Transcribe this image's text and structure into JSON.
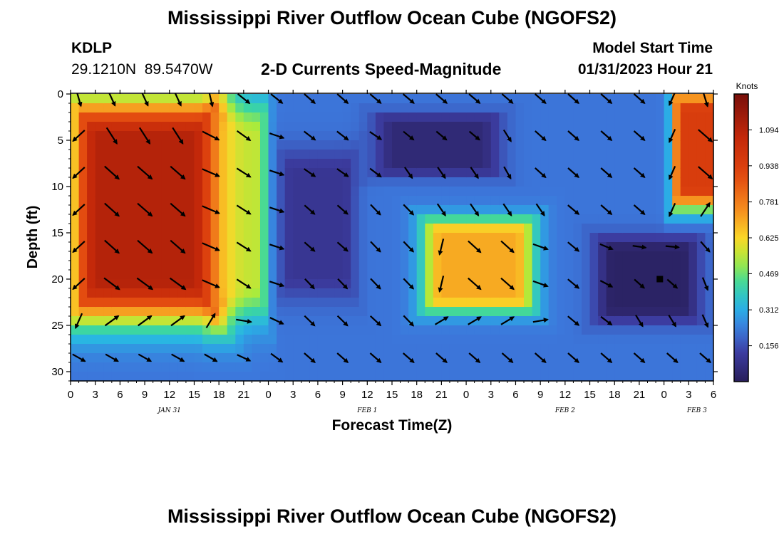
{
  "page": {
    "title": "Mississippi River Outflow Ocean Cube (NGOFS2)",
    "footer_title": "Mississippi River Outflow Ocean Cube (NGOFS2)"
  },
  "header": {
    "station_id": "KDLP",
    "station_coords": "29.1210N  89.5470W",
    "subtitle": "2-D Currents Speed-Magnitude",
    "model_start_label": "Model Start Time",
    "model_start_value": "01/31/2023 Hour 21"
  },
  "chart_data": {
    "type": "heatmap",
    "title": "2-D Currents Speed-Magnitude",
    "xlabel": "Forecast Time(Z)",
    "ylabel": "Depth (ft)",
    "xlim": [
      0,
      78
    ],
    "ylim": [
      31,
      0
    ],
    "y_ticks": [
      0,
      5,
      10,
      15,
      20,
      25,
      30
    ],
    "x_ticks": [
      "0",
      "3",
      "6",
      "9",
      "12",
      "15",
      "18",
      "21",
      "0",
      "3",
      "6",
      "9",
      "12",
      "15",
      "18",
      "21",
      "0",
      "3",
      "6",
      "9",
      "12",
      "15",
      "18",
      "21",
      "0",
      "3",
      "6"
    ],
    "date_labels": [
      {
        "text": "JAN 31",
        "hour": 12
      },
      {
        "text": "FEB 1",
        "hour": 36
      },
      {
        "text": "FEB 2",
        "hour": 60
      },
      {
        "text": "FEB 3",
        "hour": 76
      }
    ],
    "colorbar": {
      "label": "Knots",
      "ticks": [
        "0.156",
        "0.312",
        "0.469",
        "0.625",
        "0.781",
        "0.938",
        "1.094"
      ],
      "tick_values": [
        0.156,
        0.312,
        0.469,
        0.625,
        0.781,
        0.938,
        1.094
      ],
      "range": [
        0,
        1.25
      ]
    },
    "speed_features": [
      {
        "hour_range": [
          0,
          18
        ],
        "depth_range": [
          0,
          25
        ],
        "speed": 1.1
      },
      {
        "hour_range": [
          18,
          23
        ],
        "depth_range": [
          0,
          25
        ],
        "speed": 0.55
      },
      {
        "hour_range": [
          26,
          34
        ],
        "depth_range": [
          6,
          22
        ],
        "speed": 0.1
      },
      {
        "hour_range": [
          37,
          52
        ],
        "depth_range": [
          3,
          8
        ],
        "speed": 0.05
      },
      {
        "hour_range": [
          43,
          56
        ],
        "depth_range": [
          14,
          23
        ],
        "speed": 0.7
      },
      {
        "hour_range": [
          64,
          76
        ],
        "depth_range": [
          16,
          24
        ],
        "speed": 0.02
      },
      {
        "hour_range": [
          74,
          78
        ],
        "depth_range": [
          0,
          12
        ],
        "speed": 0.95
      }
    ],
    "vector_depths": [
      0,
      4,
      8,
      12,
      16,
      20,
      24,
      28
    ],
    "vector_hours": [
      0,
      4,
      8,
      12,
      16,
      20,
      24,
      28,
      32,
      36,
      40,
      44,
      48,
      52,
      56,
      60,
      64,
      68,
      72,
      76
    ],
    "marker": {
      "hour": 71.5,
      "depth": 20
    }
  }
}
